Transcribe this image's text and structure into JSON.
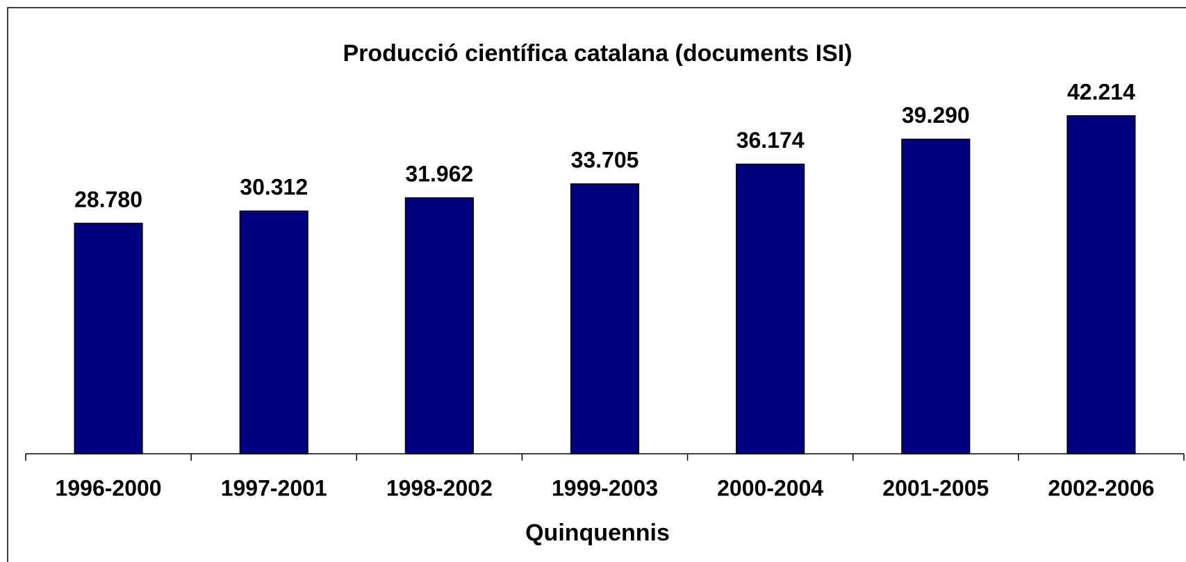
{
  "chart_data": {
    "type": "bar",
    "title": "Producció científica catalana (documents ISI)",
    "x_label": "Quinquennis",
    "categories": [
      "1996-2000",
      "1997-2001",
      "1998-2002",
      "1999-2003",
      "2000-2004",
      "2001-2005",
      "2002-2006"
    ],
    "values": [
      28780,
      30312,
      31962,
      33705,
      36174,
      39290,
      42214
    ],
    "value_labels": [
      "28.780",
      "30.312",
      "31.962",
      "33.705",
      "36.174",
      "39.290",
      "42.214"
    ],
    "color": "#000080",
    "ylim": [
      0,
      50000
    ]
  }
}
